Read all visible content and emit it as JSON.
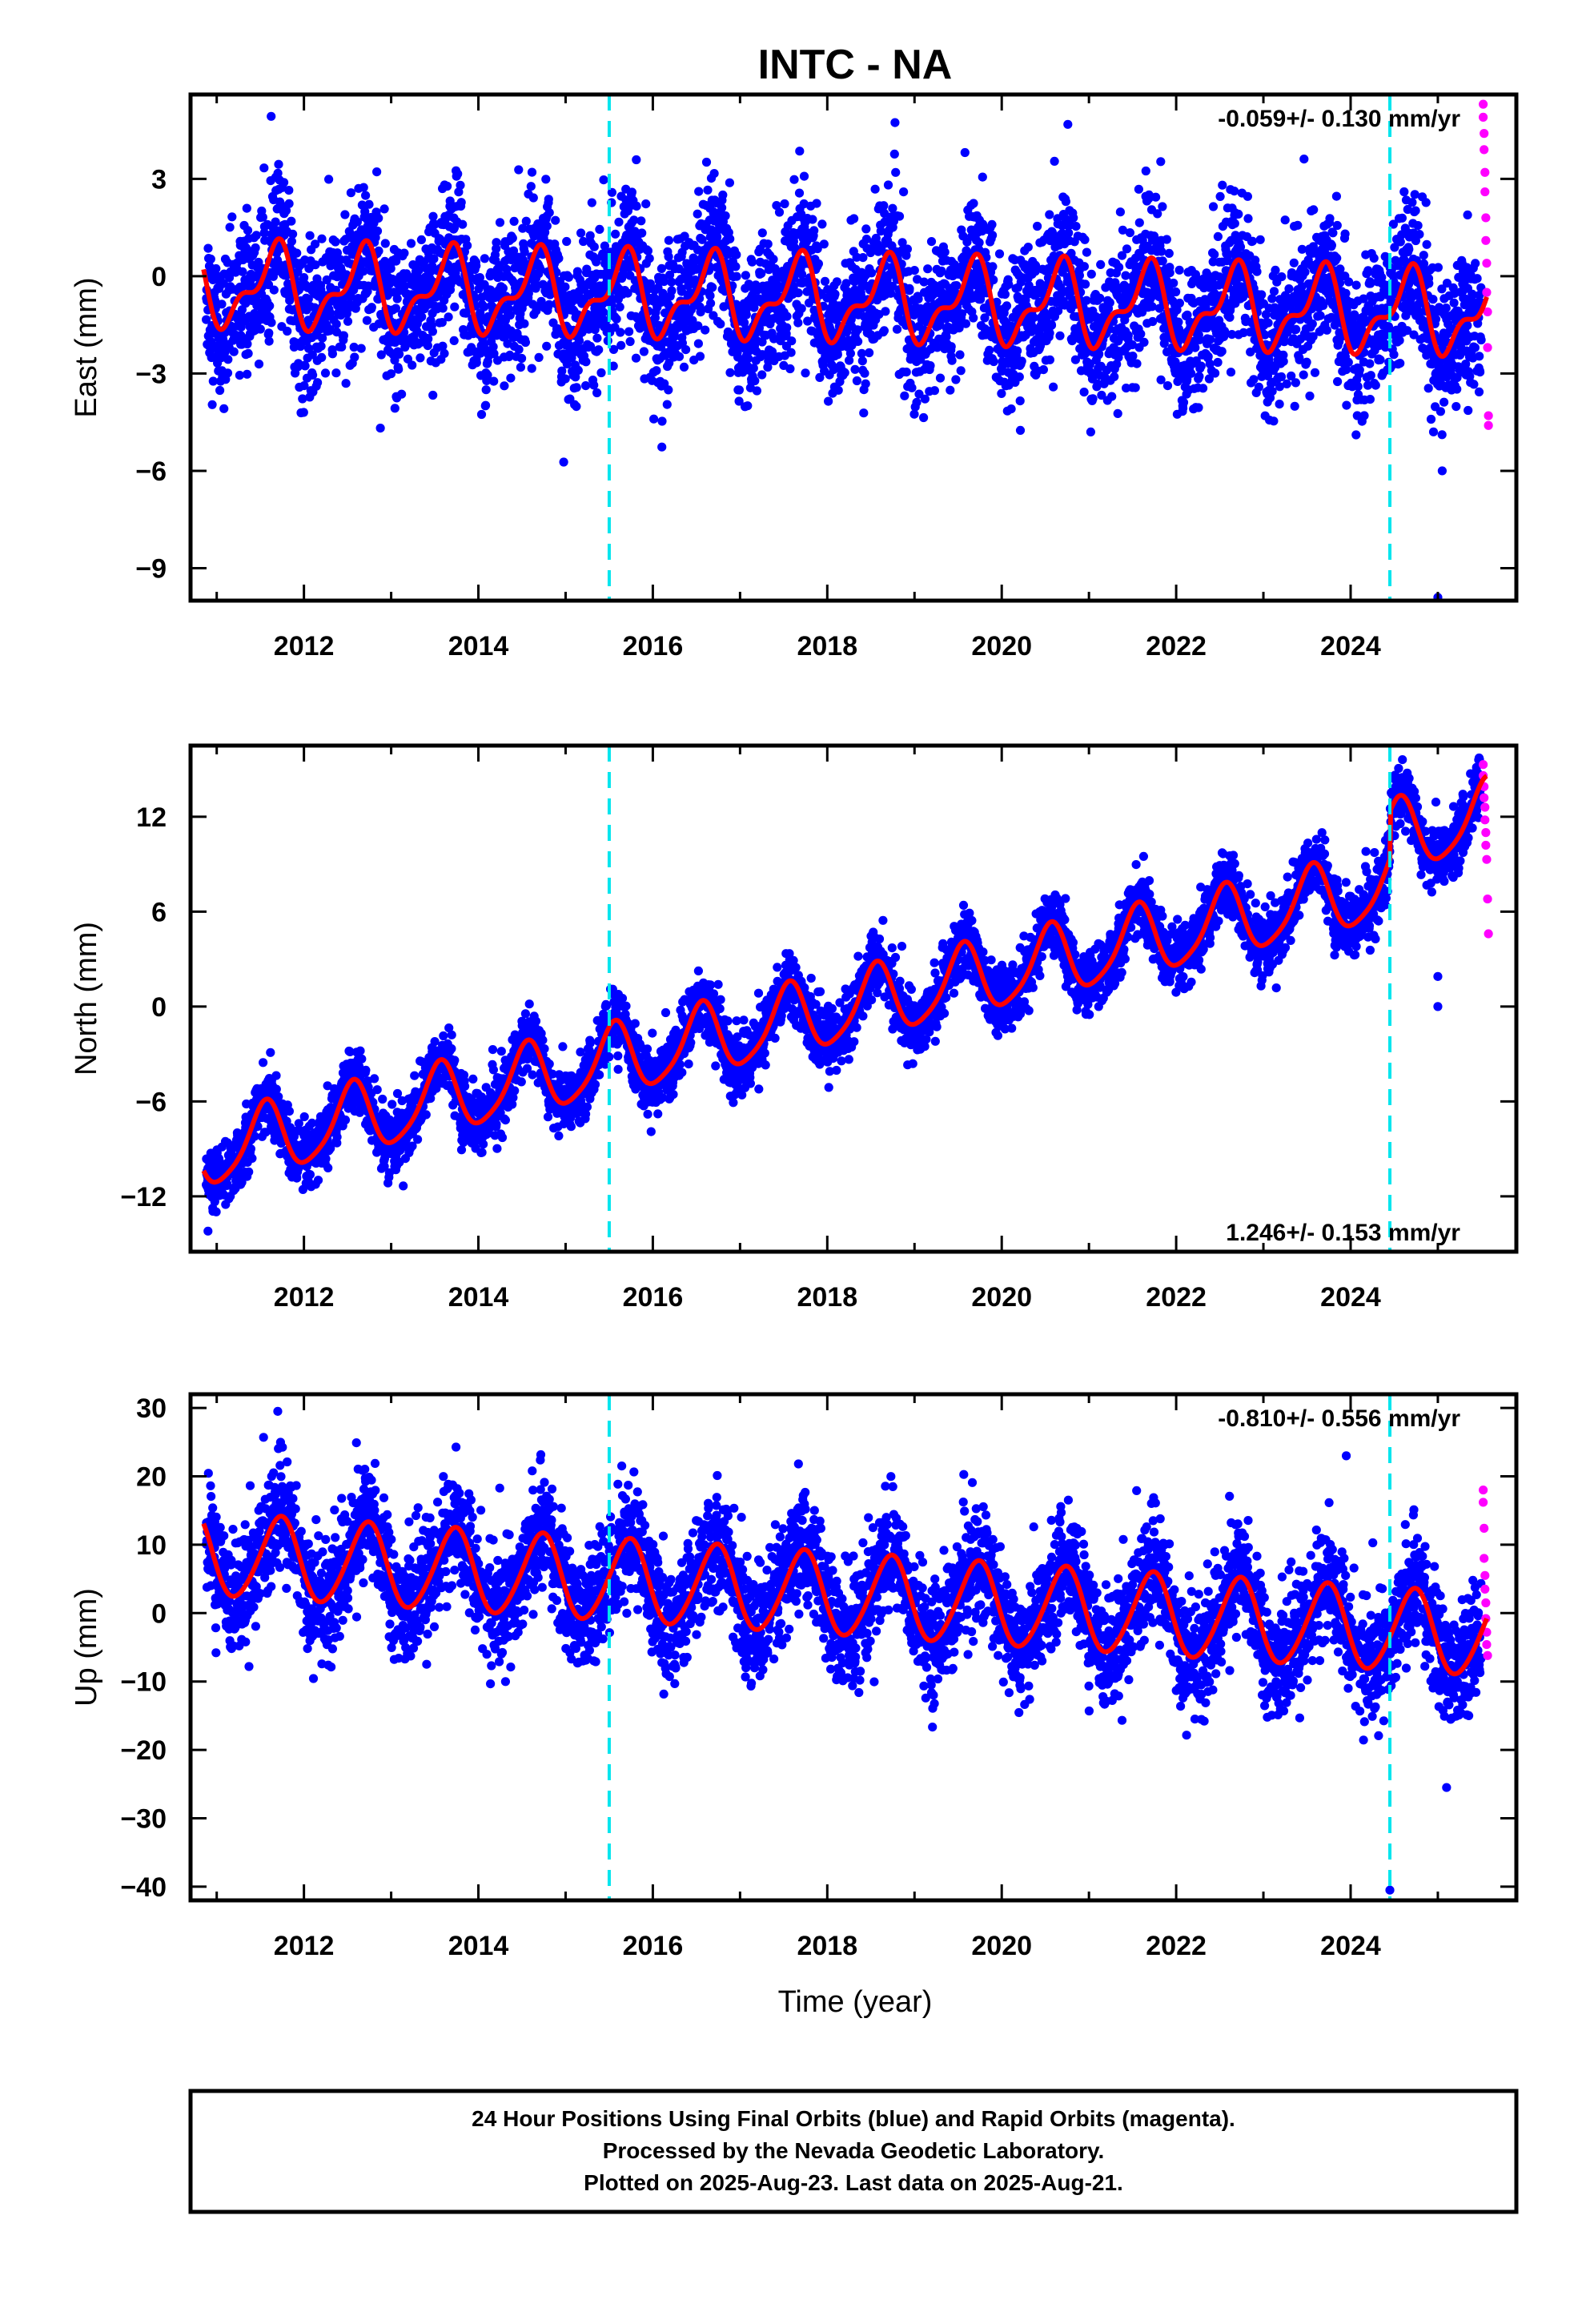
{
  "title": "INTC - NA",
  "xlabel": "Time (year)",
  "footer": [
    "24 Hour Positions Using Final Orbits (blue) and Rapid Orbits (magenta).",
    "Processed by the Nevada Geodetic Laboratory.",
    "Plotted on 2025-Aug-23. Last data on 2025-Aug-21."
  ],
  "colors": {
    "final": "#0000ff",
    "rapid": "#ff00ff",
    "model": "#ff0000",
    "offset_line": "#00e5ee"
  },
  "chart_data": [
    {
      "type": "scatter",
      "ylabel": "East (mm)",
      "rate_label": "-0.059+/- 0.130 mm/yr",
      "xlim": [
        2010.7,
        2025.9
      ],
      "ylim": [
        -10.0,
        5.6
      ],
      "xticks": [
        2012,
        2014,
        2016,
        2018,
        2020,
        2022,
        2024
      ],
      "yticks": [
        3,
        0,
        -3,
        -6,
        -9
      ],
      "ytick_labels": [
        "3",
        "0",
        "−3",
        "−6",
        "−9"
      ],
      "offsets": [
        2015.5,
        2024.45
      ],
      "trend": {
        "t0": 2010.85,
        "y0": -0.3,
        "rate": -0.059
      },
      "annual_amp": 1.1,
      "annual_phase": 2011.65,
      "semiannual_amp": 0.55,
      "semiannual_phase": 2011.75,
      "noise": 1.1,
      "rapid": [
        [
          2025.52,
          5.3
        ],
        [
          2025.52,
          4.9
        ],
        [
          2025.53,
          4.4
        ],
        [
          2025.53,
          3.9
        ],
        [
          2025.54,
          3.2
        ],
        [
          2025.54,
          2.6
        ],
        [
          2025.55,
          1.8
        ],
        [
          2025.55,
          1.1
        ],
        [
          2025.56,
          0.4
        ],
        [
          2025.56,
          -0.5
        ],
        [
          2025.57,
          -1.1
        ],
        [
          2025.57,
          -2.2
        ],
        [
          2025.58,
          -4.3
        ],
        [
          2025.58,
          -4.6
        ]
      ],
      "outliers": [
        [
          2025.0,
          -9.9
        ],
        [
          2025.05,
          -6.0
        ],
        [
          2024.95,
          -4.8
        ]
      ]
    },
    {
      "type": "scatter",
      "ylabel": "North (mm)",
      "rate_label": "1.246+/- 0.153 mm/yr",
      "xlim": [
        2010.7,
        2025.9
      ],
      "ylim": [
        -15.5,
        16.5
      ],
      "xticks": [
        2012,
        2014,
        2016,
        2018,
        2020,
        2022,
        2024
      ],
      "yticks": [
        12,
        6,
        0,
        -6,
        -12
      ],
      "ytick_labels": [
        "12",
        "6",
        "0",
        "−6",
        "−12"
      ],
      "offsets": [
        2015.5,
        2024.45
      ],
      "trend": {
        "t0": 2010.85,
        "y0": -9.3,
        "rate": 1.246
      },
      "offset_steps": [
        [
          2024.45,
          3.0
        ]
      ],
      "annual_amp": 2.2,
      "annual_phase": 2011.55,
      "semiannual_amp": 0.4,
      "semiannual_phase": 2011.6,
      "noise": 1.0,
      "rapid": [
        [
          2025.52,
          15.3
        ],
        [
          2025.52,
          14.6
        ],
        [
          2025.53,
          13.9
        ],
        [
          2025.53,
          13.2
        ],
        [
          2025.54,
          12.6
        ],
        [
          2025.54,
          11.8
        ],
        [
          2025.55,
          11.0
        ],
        [
          2025.55,
          10.2
        ],
        [
          2025.56,
          9.3
        ],
        [
          2025.57,
          6.8
        ],
        [
          2025.58,
          4.6
        ]
      ],
      "outliers": [
        [
          2025.0,
          0.0
        ],
        [
          2025.0,
          1.9
        ],
        [
          2010.9,
          -14.2
        ]
      ]
    },
    {
      "type": "scatter",
      "ylabel": "Up (mm)",
      "rate_label": "-0.810+/- 0.556 mm/yr",
      "xlim": [
        2010.7,
        2025.9
      ],
      "ylim": [
        -42.0,
        32.0
      ],
      "xticks": [
        2012,
        2014,
        2016,
        2018,
        2020,
        2022,
        2024
      ],
      "yticks": [
        30,
        20,
        10,
        0,
        -10,
        -20,
        -30,
        -40
      ],
      "ytick_labels": [
        "30",
        "20",
        "10",
        "0",
        "−10",
        "−20",
        "−30",
        "−40"
      ],
      "offsets": [
        2015.5,
        2024.45
      ],
      "trend": {
        "t0": 2010.85,
        "y0": 8.5,
        "rate": -0.81
      },
      "annual_amp": 6.0,
      "annual_phase": 2011.72,
      "semiannual_amp": 0.6,
      "semiannual_phase": 2011.8,
      "noise": 4.2,
      "rapid": [
        [
          2025.52,
          18.0
        ],
        [
          2025.52,
          16.2
        ],
        [
          2025.53,
          12.4
        ],
        [
          2025.53,
          8.0
        ],
        [
          2025.54,
          5.5
        ],
        [
          2025.54,
          3.5
        ],
        [
          2025.55,
          1.5
        ],
        [
          2025.55,
          -0.8
        ],
        [
          2025.56,
          -2.8
        ],
        [
          2025.56,
          -4.6
        ],
        [
          2025.57,
          -6.2
        ]
      ],
      "outliers": [
        [
          2024.45,
          -40.5
        ],
        [
          2023.95,
          23.0
        ],
        [
          2025.1,
          -25.5
        ],
        [
          2011.7,
          29.5
        ]
      ]
    }
  ]
}
